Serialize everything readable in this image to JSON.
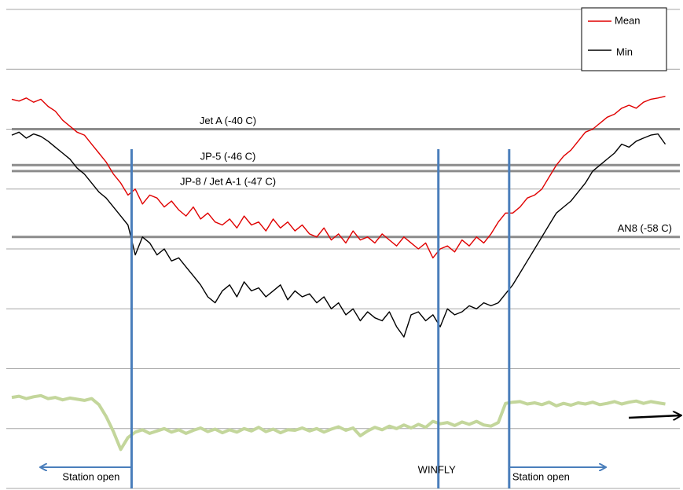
{
  "chart_data": {
    "type": "line",
    "xlim": [
      0,
      365
    ],
    "ylim": [
      -100,
      -20
    ],
    "yticks": [
      -100,
      -90,
      -80,
      -70,
      -60,
      -50,
      -40,
      -30,
      -20
    ],
    "grid": true,
    "legend": "top-right",
    "x": [
      0,
      4,
      8,
      12,
      16,
      20,
      24,
      28,
      32,
      36,
      40,
      44,
      48,
      52,
      56,
      60,
      64,
      68,
      72,
      76,
      80,
      84,
      88,
      92,
      96,
      100,
      104,
      108,
      112,
      116,
      120,
      124,
      128,
      132,
      136,
      140,
      144,
      148,
      152,
      156,
      160,
      164,
      168,
      172,
      176,
      180,
      184,
      188,
      192,
      196,
      200,
      204,
      208,
      212,
      216,
      220,
      224,
      228,
      232,
      236,
      240,
      244,
      248,
      252,
      256,
      260,
      264,
      268,
      272,
      276,
      280,
      284,
      288,
      292,
      296,
      300,
      304,
      308,
      312,
      316,
      320,
      324,
      328,
      332,
      336,
      340,
      344,
      348,
      352,
      356,
      360
    ],
    "series": [
      {
        "name": "Mean",
        "color": "#e00000",
        "values": [
          -35,
          -35.3,
          -34.8,
          -35.5,
          -35,
          -36.2,
          -37,
          -38.5,
          -39.5,
          -40.5,
          -41,
          -42.5,
          -44,
          -45.5,
          -47.5,
          -49,
          -51,
          -50,
          -52.5,
          -51,
          -51.5,
          -53,
          -52,
          -53.5,
          -54.5,
          -53,
          -55,
          -54,
          -55.5,
          -56,
          -55,
          -56.5,
          -54.5,
          -56,
          -55.5,
          -57,
          -55,
          -56.5,
          -55.5,
          -57,
          -56,
          -57.5,
          -58,
          -56.5,
          -58.5,
          -57.5,
          -59,
          -57,
          -58.5,
          -58,
          -59,
          -57.5,
          -58.5,
          -59.5,
          -58,
          -59,
          -60,
          -59,
          -61.5,
          -60,
          -59.5,
          -60.5,
          -58.5,
          -59.5,
          -58,
          -59,
          -57.5,
          -55.5,
          -54,
          -54,
          -53,
          -51.5,
          -51,
          -50,
          -48,
          -46,
          -44.5,
          -43.5,
          -42,
          -40.5,
          -40,
          -39,
          -38,
          -37.5,
          -36.5,
          -36,
          -36.5,
          -35.5,
          -35,
          -34.8,
          -34.5
        ]
      },
      {
        "name": "Min",
        "color": "#000000",
        "values": [
          -41,
          -40.5,
          -41.5,
          -40.8,
          -41.2,
          -42,
          -43,
          -44,
          -45,
          -46.5,
          -47.5,
          -49,
          -50.5,
          -51.5,
          -53,
          -54.5,
          -56,
          -61,
          -58,
          -59,
          -61,
          -60,
          -62,
          -61.5,
          -63,
          -64.5,
          -66,
          -68,
          -69,
          -67,
          -66,
          -68,
          -65.5,
          -67,
          -66.5,
          -68,
          -67,
          -66,
          -68.5,
          -67,
          -68,
          -67.5,
          -69,
          -68,
          -70,
          -69,
          -71,
          -70,
          -72,
          -70.5,
          -71.5,
          -72,
          -70.5,
          -73,
          -74.7,
          -71,
          -70.5,
          -72,
          -71,
          -73,
          -70,
          -71,
          -70.5,
          -69.5,
          -70,
          -69,
          -69.5,
          -69,
          -67.5,
          -66,
          -64,
          -62,
          -60,
          -58,
          -56,
          -54,
          -53,
          -52,
          -50.5,
          -49,
          -47,
          -46,
          -45,
          -44,
          -42.5,
          -43,
          -42,
          -41.5,
          -41,
          -40.8,
          -42.5
        ]
      },
      {
        "color": "#c3d69b",
        "values": [
          -84.8,
          -84.6,
          -85,
          -84.7,
          -84.5,
          -85,
          -84.8,
          -85.2,
          -84.9,
          -85.1,
          -85.3,
          -85,
          -86,
          -88,
          -90.5,
          -93.5,
          -91.5,
          -90.6,
          -90.2,
          -90.8,
          -90.4,
          -90,
          -90.6,
          -90.2,
          -90.8,
          -90.3,
          -89.9,
          -90.5,
          -90.1,
          -90.7,
          -90.2,
          -90.6,
          -90,
          -90.4,
          -89.8,
          -90.5,
          -90.1,
          -90.7,
          -90.2,
          -90.3,
          -89.9,
          -90.4,
          -90,
          -90.6,
          -90.1,
          -89.7,
          -90.3,
          -89.9,
          -91.2,
          -90.4,
          -89.8,
          -90.2,
          -89.6,
          -90,
          -89.4,
          -89.9,
          -89.3,
          -89.8,
          -88.8,
          -89.2,
          -89,
          -89.5,
          -88.9,
          -89.3,
          -88.8,
          -89.4,
          -89.6,
          -89,
          -85.8,
          -85.6,
          -85.5,
          -85.9,
          -85.7,
          -86,
          -85.6,
          -86.2,
          -85.8,
          -86.1,
          -85.7,
          -85.9,
          -85.6,
          -86,
          -85.8,
          -85.5,
          -85.9,
          -85.6,
          -85.4,
          -85.8,
          -85.5,
          -85.7,
          -85.9
        ]
      }
    ],
    "reference_lines": [
      {
        "label": "Jet A (-40 C)",
        "value": -40
      },
      {
        "label": "JP-5 (-46 C)",
        "value": -46
      },
      {
        "label": "JP-8 / Jet A-1 (-47 C)",
        "value": -47
      },
      {
        "label": "AN8 (-58 C)",
        "value": -58
      }
    ],
    "reference_color": "#8c8c8c",
    "vertical_lines": [
      {
        "x": 66,
        "label": "Station open"
      },
      {
        "x": 235,
        "label": "WINFLY"
      },
      {
        "x": 274,
        "label": "Station open"
      }
    ],
    "vertical_color": "#4a7ebb"
  }
}
